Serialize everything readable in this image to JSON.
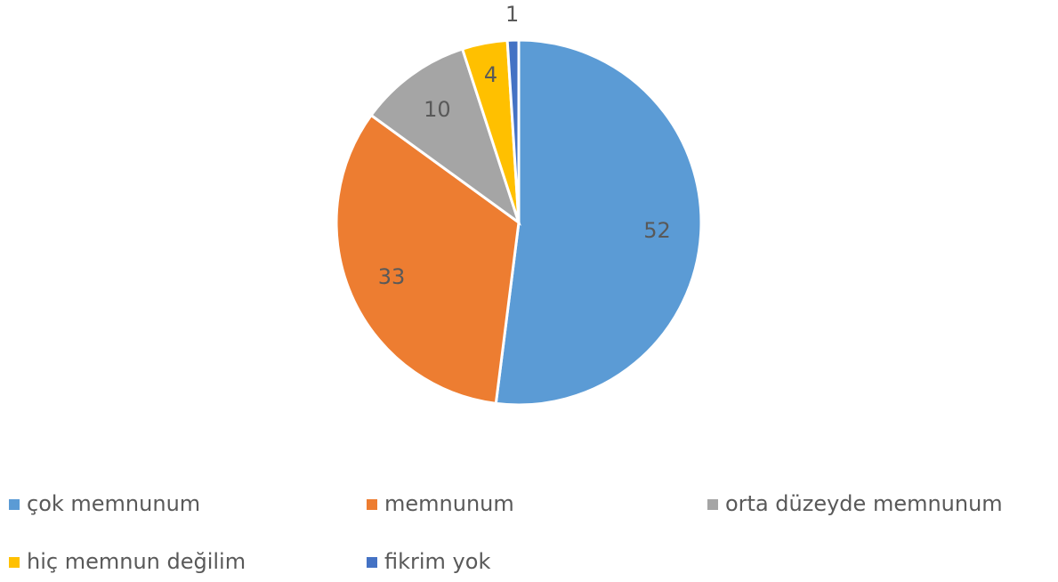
{
  "chart_data": {
    "type": "pie",
    "categories": [
      "çok memnunum",
      "memnunum",
      "orta düzeyde memnunum",
      "hiç memnun değilim",
      "fikrim yok"
    ],
    "values": [
      52,
      33,
      10,
      4,
      1
    ],
    "colors": [
      "#5b9bd5",
      "#ed7d31",
      "#a5a5a5",
      "#ffc000",
      "#4472c4"
    ],
    "legend": "bottom"
  }
}
